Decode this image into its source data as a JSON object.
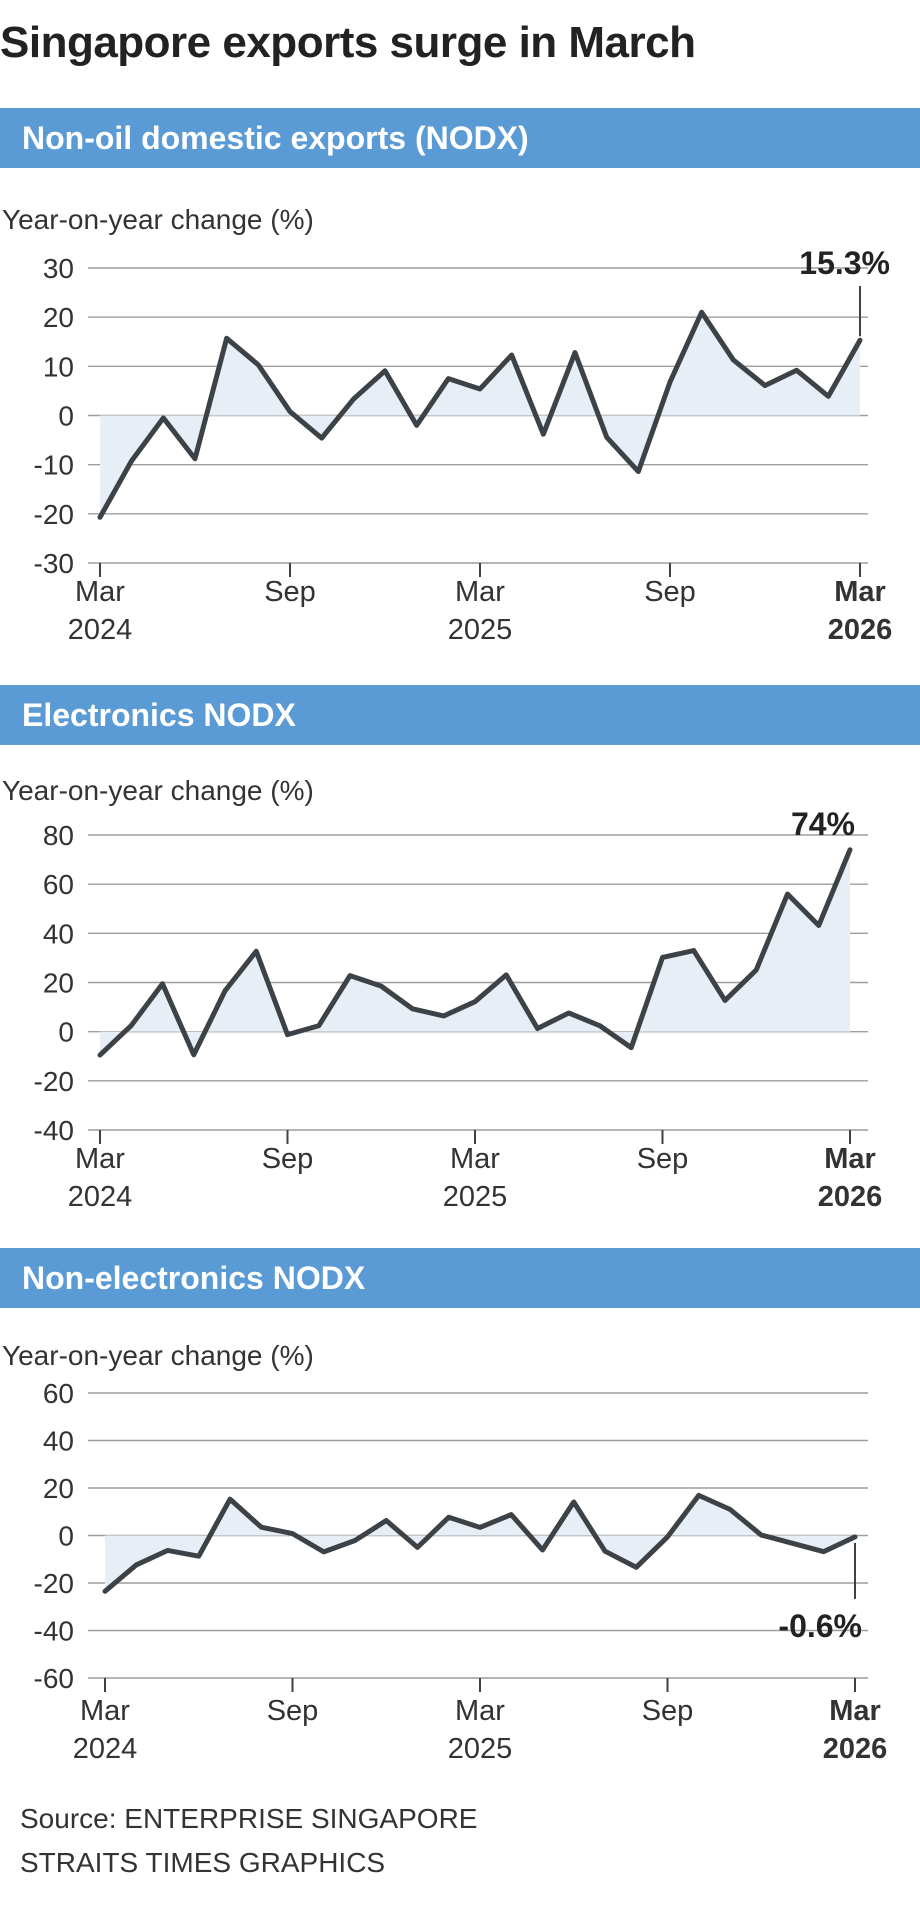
{
  "page": {
    "title": "Singapore exports surge in March"
  },
  "source": {
    "source_text": "Source: ENTERPRISE SINGAPORE",
    "credit_text": "STRAITS TIMES GRAPHICS"
  },
  "colors": {
    "header": "#5b9bd5",
    "line": "#3d4247",
    "fill": "#e8eef5",
    "grid": "#9e9e9e"
  },
  "chart_data": [
    {
      "type": "line",
      "title": "Non-oil domestic exports (NODX)",
      "ylabel": "Year-on-year change (%)",
      "ylim": [
        -30,
        30
      ],
      "yticks": [
        30,
        20,
        10,
        0,
        -10,
        -20,
        -30
      ],
      "xlabels": [
        {
          "index": 0,
          "line1": "Mar",
          "line2": "2024",
          "bold": false
        },
        {
          "index": 6,
          "line1": "Sep",
          "line2": "",
          "bold": false
        },
        {
          "index": 12,
          "line1": "Mar",
          "line2": "2025",
          "bold": false
        },
        {
          "index": 18,
          "line1": "Sep",
          "line2": "",
          "bold": false
        },
        {
          "index": 24,
          "line1": "Mar",
          "line2": "2026",
          "bold": true
        }
      ],
      "values": [
        -20.7,
        -9.2,
        -0.5,
        -8.8,
        15.7,
        10.3,
        0.8,
        -4.6,
        3.3,
        9.1,
        -2.0,
        7.5,
        5.4,
        12.3,
        -3.8,
        12.8,
        -4.4,
        -11.4,
        6.8,
        21.0,
        11.3,
        6.1,
        9.2,
        3.9,
        15.3
      ],
      "callout": {
        "text": "15.3%",
        "index": 24
      }
    },
    {
      "type": "line",
      "title": "Electronics NODX",
      "ylabel": "Year-on-year change (%)",
      "ylim": [
        -40,
        80
      ],
      "yticks": [
        80,
        60,
        40,
        20,
        0,
        -20,
        -40
      ],
      "xlabels": [
        {
          "index": 0,
          "line1": "Mar",
          "line2": "2024",
          "bold": false
        },
        {
          "index": 6,
          "line1": "Sep",
          "line2": "",
          "bold": false
        },
        {
          "index": 12,
          "line1": "Mar",
          "line2": "2025",
          "bold": false
        },
        {
          "index": 18,
          "line1": "Sep",
          "line2": "",
          "bold": false
        },
        {
          "index": 24,
          "line1": "Mar",
          "line2": "2026",
          "bold": true
        }
      ],
      "values": [
        -9.5,
        2.5,
        19.5,
        -9.4,
        16.6,
        32.7,
        -1.2,
        2.4,
        22.8,
        18.5,
        9.3,
        6.4,
        12.2,
        23.1,
        1.3,
        7.6,
        2.4,
        -6.5,
        30.2,
        33.0,
        12.7,
        25.1,
        56.0,
        43.2,
        74.0
      ],
      "callout": {
        "text": "74%",
        "index": 24
      }
    },
    {
      "type": "line",
      "title": "Non-electronics NODX",
      "ylabel": "Year-on-year change (%)",
      "ylim": [
        -60,
        60
      ],
      "yticks": [
        60,
        40,
        20,
        0,
        -20,
        -40,
        -60
      ],
      "xlabels": [
        {
          "index": 0,
          "line1": "Mar",
          "line2": "2024",
          "bold": false
        },
        {
          "index": 6,
          "line1": "Sep",
          "line2": "",
          "bold": false
        },
        {
          "index": 12,
          "line1": "Mar",
          "line2": "2025",
          "bold": false
        },
        {
          "index": 18,
          "line1": "Sep",
          "line2": "",
          "bold": false
        },
        {
          "index": 24,
          "line1": "Mar",
          "line2": "2026",
          "bold": true
        }
      ],
      "values": [
        -23.5,
        -12.4,
        -6.3,
        -8.7,
        15.3,
        3.5,
        0.8,
        -6.9,
        -2.1,
        6.3,
        -5.0,
        7.7,
        3.4,
        8.8,
        -6.1,
        14.1,
        -6.6,
        -13.4,
        -0.6,
        16.9,
        11.0,
        0.2,
        -3.3,
        -6.8,
        -0.6
      ],
      "callout": {
        "text": "-0.6%",
        "index": 24
      }
    }
  ]
}
